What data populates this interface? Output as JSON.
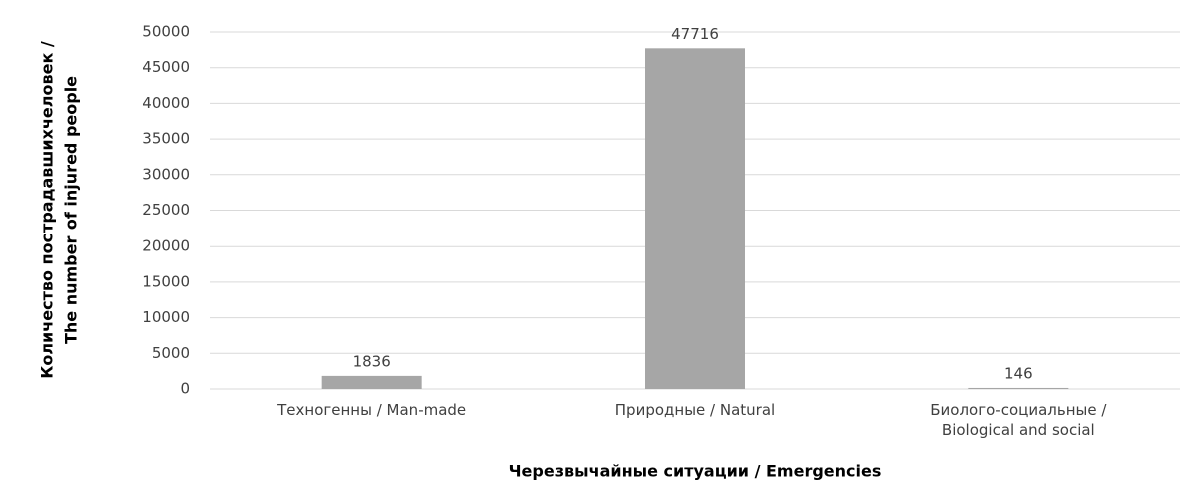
{
  "chart_data": {
    "type": "bar",
    "y_label": [
      "Количество пострадавшихчеловек /",
      "The number of injured people"
    ],
    "x_label": "Черезвычайные ситуации / Emergencies",
    "categories": [
      "Техногенны / Man-made",
      "Природные / Natural",
      "Биолого-социальные / Biological and social"
    ],
    "values": [
      1836,
      47716,
      146
    ],
    "color": "#a6a6a6",
    "ylim": [
      0,
      50000
    ],
    "yticks": [
      0,
      5000,
      10000,
      15000,
      20000,
      25000,
      30000,
      35000,
      40000,
      45000,
      50000
    ],
    "grid": true
  }
}
